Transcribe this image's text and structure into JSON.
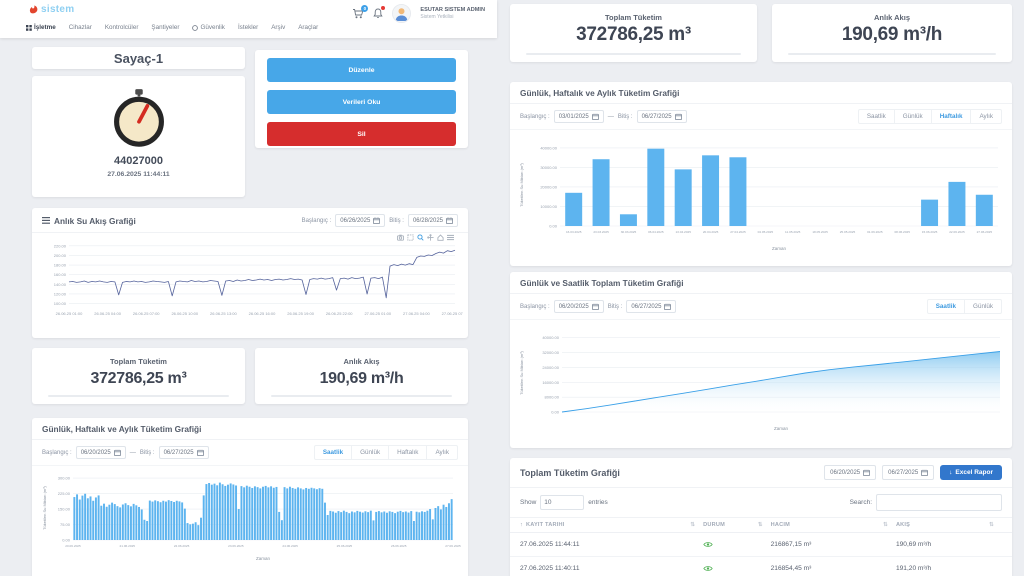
{
  "navbar": {
    "logo_text": "sistem",
    "items": [
      "İşletme",
      "Cihazlar",
      "Kontrolcüler",
      "Şantiyeler",
      "Güvenlik",
      "İstekler",
      "Arşiv",
      "Araçlar"
    ],
    "cart_badge": "0",
    "user_name": "Esutar Sistem Admin",
    "user_role": "Sistem Yetkilisi"
  },
  "meter": {
    "title": "Sayaç-1",
    "value": "44027000",
    "timestamp": "27.06.2025 11:44:11",
    "buttons": {
      "edit": "Düzenle",
      "read": "Verileri Oku",
      "delete": "Sil"
    }
  },
  "date_labels": {
    "start": "Başlangıç :",
    "end": "Bitiş :"
  },
  "stats": {
    "total_label": "Toplam Tüketim",
    "total_value": "372786,25 m³",
    "flow_label": "Anlık Akış",
    "flow_value": "190,69 m³/h"
  },
  "flow_chart": {
    "title": "Anlık Su Akış Grafiği",
    "start_value": "06/26/2025",
    "end_value": "06/28/2025"
  },
  "hourly_chart": {
    "title": "Günlük, Haftalık ve Aylık Tüketim Grafiği",
    "start_value": "06/20/2025",
    "end_value": "06/27/2025",
    "tabs": [
      "Saatlik",
      "Günlük",
      "Haftalık",
      "Aylık"
    ]
  },
  "weekly_chart": {
    "title": "Günlük, Haftalık ve Aylık Tüketim Grafiği",
    "start_value": "03/01/2025",
    "end_value": "06/27/2025",
    "tabs": [
      "Saatlik",
      "Günlük",
      "Haftalık",
      "Aylık"
    ]
  },
  "cumulative_chart": {
    "title": "Günlük ve Saatlik Toplam Tüketim Grafiği",
    "start_value": "06/20/2025",
    "end_value": "06/27/2025",
    "tabs": [
      "Saatlik",
      "Günlük"
    ]
  },
  "report": {
    "title": "Toplam Tüketim Grafiği",
    "date_from": "06/20/2025",
    "date_to": "06/27/2025",
    "excel_button": "Excel Rapor",
    "show_label": "Show",
    "entries_value": "10",
    "entries_label": "entries",
    "search_label": "Search:",
    "columns": [
      "Kayıt Tarihi",
      "Durum",
      "Hacim",
      "Akış"
    ],
    "rows": [
      {
        "date": "27.06.2025 11:44:11",
        "volume": "216867,15 m³",
        "flow": "190,69 m³/h"
      },
      {
        "date": "27.06.2025 11:40:11",
        "volume": "216854,45 m³",
        "flow": "191,20 m³/h"
      }
    ]
  },
  "icons": {
    "sort": "⇅",
    "sort_asc": "↑",
    "download": "↓",
    "dash": "—"
  },
  "colors": {
    "accent_blue": "#47a7e8",
    "danger_red": "#d62d2d",
    "bar_blue": "#5db4ef",
    "tab_active": "#3f9be0"
  },
  "chart_data": [
    {
      "id": "flow",
      "type": "line",
      "title": "Anlık Su Akış Grafiği",
      "ylim": [
        95,
        228
      ],
      "yticks": [
        100,
        120,
        140,
        160,
        180,
        200,
        220
      ],
      "xticks": [
        "26.06.25 01:00",
        "26.06.25 04:00",
        "26.06.25 07:00",
        "26.06.25 10:00",
        "26.06.25 13:00",
        "26.06.25 16:00",
        "26.06.25 19:00",
        "26.06.25 22:00",
        "27.06.25 01:00",
        "27.06.25 04:00",
        "27.06.25 07:00"
      ],
      "line_color": "#55639c",
      "values": [
        145,
        146,
        144,
        145,
        147,
        144,
        146,
        145,
        147,
        145,
        144,
        146,
        145,
        118,
        144,
        146,
        145,
        147,
        145,
        146,
        144,
        145,
        147,
        146,
        145,
        144,
        146,
        116,
        145,
        147,
        146,
        145,
        148,
        146,
        147,
        145,
        146,
        148,
        147,
        146,
        117,
        147,
        148,
        146,
        149,
        147,
        148,
        150,
        148,
        149,
        151,
        149,
        150,
        148,
        150,
        151,
        149,
        150,
        152,
        150,
        151,
        149,
        119,
        150,
        152,
        151,
        153,
        151,
        152,
        154,
        128,
        152,
        153,
        151,
        154,
        152,
        153,
        155,
        120,
        153,
        154,
        152,
        155,
        112,
        178,
        181,
        179,
        182,
        180,
        183,
        181,
        196,
        199,
        198,
        201,
        200,
        204,
        207,
        205,
        210,
        208,
        211
      ]
    },
    {
      "id": "hourly",
      "type": "bar",
      "title": "Günlük, Haftalık ve Aylık Tüketim Grafiği (Saatlik)",
      "ylabel": "Tüketilen Su Miktarı (m³)",
      "xlabel": "Zaman",
      "ylim": [
        0,
        310
      ],
      "yticks": [
        0,
        75,
        150,
        225,
        300
      ],
      "xticks": [
        "20.06.2025",
        "21.06.2025",
        "22.06.2025",
        "23.06.2025",
        "24.06.2025",
        "25.06.2025",
        "26.06.2025",
        "27.06.2025"
      ],
      "bar_color": "#5db4ef",
      "values": [
        208,
        221,
        196,
        215,
        224,
        202,
        211,
        190,
        206,
        216,
        166,
        176,
        161,
        171,
        181,
        174,
        164,
        158,
        172,
        178,
        169,
        163,
        175,
        168,
        160,
        148,
        98,
        92,
        191,
        186,
        192,
        188,
        183,
        190,
        186,
        193,
        189,
        184,
        190,
        187,
        182,
        152,
        82,
        76,
        79,
        86,
        72,
        108,
        216,
        271,
        276,
        268,
        273,
        265,
        278,
        270,
        262,
        268,
        274,
        269,
        264,
        150,
        261,
        255,
        263,
        258,
        252,
        260,
        256,
        250,
        258,
        262,
        255,
        260,
        253,
        257,
        136,
        96,
        256,
        250,
        258,
        252,
        248,
        255,
        250,
        245,
        252,
        248,
        253,
        250,
        246,
        251,
        248,
        181,
        121,
        141,
        138,
        132,
        140,
        135,
        142,
        136,
        130,
        138,
        134,
        141,
        137,
        133,
        139,
        135,
        142,
        95,
        136,
        140,
        134,
        138,
        132,
        139,
        136,
        130,
        137,
        141,
        135,
        138,
        133,
        140,
        92,
        137,
        134,
        139,
        136,
        142,
        150,
        100,
        155,
        164,
        148,
        171,
        160,
        178,
        198
      ]
    },
    {
      "id": "weekly",
      "type": "bar",
      "title": "Günlük, Haftalık ve Aylık Tüketim Grafiği (Haftalık)",
      "ylabel": "Tüketilen Su Miktarı (m³)",
      "xlabel": "Zaman",
      "ylim": [
        0,
        42000
      ],
      "yticks": [
        0,
        10000,
        20000,
        30000,
        40000
      ],
      "categories": [
        "16.03.2025",
        "23.03.2025",
        "30.03.2025",
        "06.04.2025",
        "13.04.2025",
        "20.04.2025",
        "27.04.2025",
        "04.05.2025",
        "11.05.2025",
        "18.05.2025",
        "25.05.2025",
        "01.06.2025",
        "08.06.2025",
        "15.06.2025",
        "22.06.2025",
        "27.06.2025"
      ],
      "bar_color": "#5db4ef",
      "values": [
        17000,
        34200,
        6000,
        39600,
        29000,
        36200,
        35200,
        0,
        0,
        0,
        0,
        0,
        0,
        13500,
        22600,
        16000
      ]
    },
    {
      "id": "cumulative",
      "type": "area",
      "title": "Günlük ve Saatlik Toplam Tüketim Grafiği",
      "ylabel": "Tüketilen Su Miktarı (m³)",
      "xlabel": "Zaman",
      "ylim": [
        0,
        42000
      ],
      "yticks": [
        0,
        8000,
        16000,
        24000,
        32000,
        40000
      ],
      "line_color": "#3aa0e8",
      "fill_color": "#7cc3ef",
      "values": [
        0,
        1800,
        3800,
        5900,
        8000,
        10100,
        12300,
        14500,
        16600,
        18800,
        21000,
        22800,
        24300,
        25600,
        27000,
        28400,
        29800,
        31200,
        32600
      ]
    }
  ]
}
